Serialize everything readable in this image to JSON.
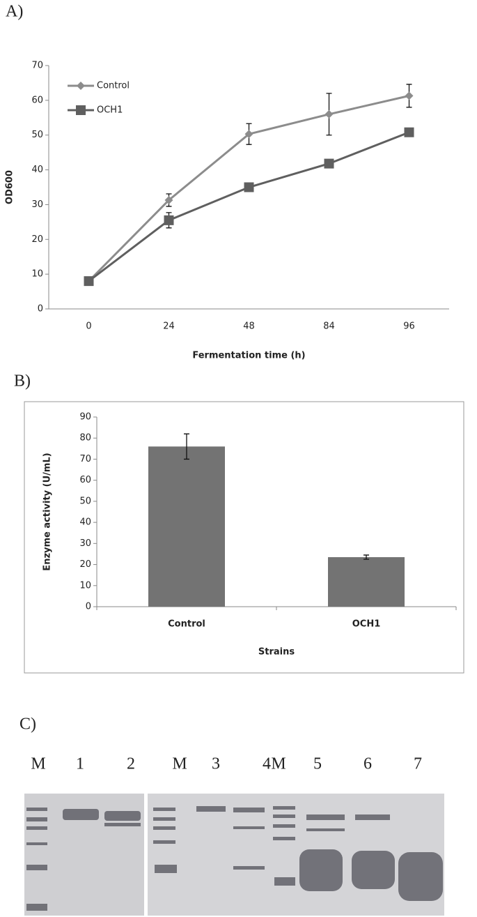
{
  "panel_labels": [
    "A)",
    "B)",
    "C)"
  ],
  "chart_data": [
    {
      "type": "line",
      "xlabel": "Fermentation time (h)",
      "ylabel": "OD600",
      "categories": [
        "0",
        "24",
        "48",
        "84",
        "96"
      ],
      "series": [
        {
          "name": "Control",
          "color": "#8c8c8c",
          "marker": "diamond",
          "values": [
            8,
            31.3,
            50.3,
            56,
            61.3
          ],
          "errors": [
            0,
            1.8,
            3,
            6,
            3.3
          ]
        },
        {
          "name": "OCH1",
          "color": "#5f5f5f",
          "marker": "square",
          "values": [
            8,
            25.5,
            35,
            41.8,
            50.8
          ],
          "errors": [
            0,
            2.2,
            0,
            0,
            0
          ]
        }
      ],
      "ylim": [
        0,
        70
      ],
      "yticks": [
        0,
        10,
        20,
        30,
        40,
        50,
        60,
        70
      ],
      "grid": false,
      "legend": "upper left"
    },
    {
      "type": "bar",
      "xlabel": "Strains",
      "ylabel": "Enzyme activity (U/mL)",
      "categories": [
        "Control",
        "OCH1"
      ],
      "values": [
        76,
        23.5
      ],
      "errors": [
        6,
        1
      ],
      "color": "#737373",
      "ylim": [
        0,
        90
      ],
      "yticks": [
        0,
        10,
        20,
        30,
        40,
        50,
        60,
        70,
        80,
        90
      ],
      "grid": false
    }
  ],
  "gel": {
    "lanes": [
      "M",
      "1",
      "2",
      "M",
      "3",
      "4",
      "M",
      "5",
      "6",
      "7"
    ]
  }
}
